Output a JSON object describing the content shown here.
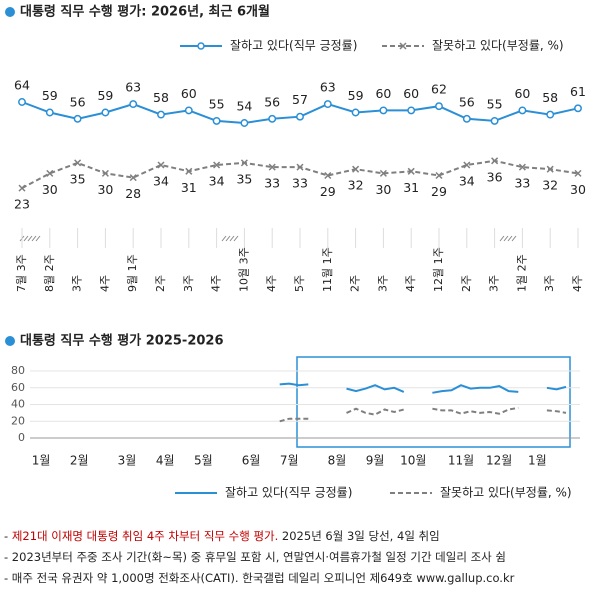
{
  "chart_data": [
    {
      "type": "line",
      "title": "대통령 직무 수행 평가: 2026년, 최근 6개월",
      "categories": [
        "7월 3주",
        "8월 2주",
        "3주",
        "4주",
        "9월 1주",
        "2주",
        "3주",
        "4주",
        "10월 3주",
        "4주",
        "5주",
        "11월 1주",
        "2주",
        "3주",
        "4주",
        "12월 1주",
        "2주",
        "3주",
        "1월 2주",
        "3주",
        "4주"
      ],
      "series": [
        {
          "name": "잘하고 있다(직무 긍정률)",
          "color": "#2b8fd6",
          "style": "solid",
          "marker": "circle",
          "label_position": "above",
          "values": [
            64,
            59,
            56,
            59,
            63,
            58,
            60,
            55,
            54,
            56,
            57,
            63,
            59,
            60,
            60,
            62,
            56,
            55,
            60,
            58,
            61
          ]
        },
        {
          "name": "잘못하고 있다(부정률, %)",
          "color": "#7f7f7f",
          "style": "dashed",
          "marker": "x",
          "label_position": "below",
          "values": [
            23,
            30,
            35,
            30,
            28,
            34,
            31,
            34,
            35,
            33,
            33,
            29,
            32,
            30,
            31,
            29,
            34,
            36,
            33,
            32,
            30
          ]
        }
      ],
      "ylim": [
        15,
        70
      ]
    },
    {
      "type": "line",
      "title": "대통령 직무 수행 평가 2025-2026",
      "categories": [
        null,
        null,
        "1월",
        null,
        null,
        null,
        "2월",
        null,
        null,
        null,
        null,
        "3월",
        null,
        null,
        null,
        "4월",
        null,
        null,
        null,
        "5월",
        null,
        null,
        null,
        null,
        "6월",
        null,
        null,
        null,
        "7월",
        null,
        null,
        null,
        null,
        "8월",
        null,
        null,
        null,
        "9월",
        null,
        null,
        null,
        "10월",
        null,
        null,
        null,
        null,
        "11월",
        null,
        null,
        null,
        "12월",
        null,
        null,
        null,
        "1월",
        null,
        null,
        null
      ],
      "series": [
        {
          "name": "잘하고 있다(직무 긍정률)",
          "color": "#2b8fd6",
          "style": "solid",
          "values": [
            null,
            null,
            null,
            null,
            null,
            null,
            null,
            null,
            null,
            null,
            null,
            null,
            null,
            null,
            null,
            null,
            null,
            null,
            null,
            null,
            null,
            null,
            null,
            null,
            null,
            null,
            null,
            64,
            65,
            63,
            64,
            null,
            null,
            null,
            59,
            56,
            59,
            63,
            58,
            60,
            55,
            null,
            null,
            54,
            56,
            57,
            63,
            59,
            60,
            60,
            62,
            56,
            55,
            null,
            null,
            60,
            58,
            61
          ]
        },
        {
          "name": "잘못하고 있다(부정률, %)",
          "color": "#7f7f7f",
          "style": "dashed",
          "values": [
            null,
            null,
            null,
            null,
            null,
            null,
            null,
            null,
            null,
            null,
            null,
            null,
            null,
            null,
            null,
            null,
            null,
            null,
            null,
            null,
            null,
            null,
            null,
            null,
            null,
            null,
            null,
            20,
            23,
            23,
            23,
            null,
            null,
            null,
            30,
            35,
            30,
            28,
            34,
            31,
            34,
            null,
            null,
            35,
            33,
            33,
            29,
            32,
            30,
            31,
            29,
            34,
            36,
            null,
            null,
            33,
            32,
            30
          ]
        }
      ],
      "ylim": [
        0,
        80
      ],
      "yticks": [
        0,
        20,
        40,
        60,
        80
      ],
      "grid": true
    }
  ],
  "footnotes": [
    [
      "- ",
      "제21대 이재명 대통령 취임 4주 차부터 직무 수행 평가.",
      " 2025년 6월 3일 당선, 4일 취임"
    ],
    [
      "- 2023년부터 주중 조사 기간(화~목) 중 휴무일 포함 시, 연말연시·여름휴가철 일정 기간 데일리 조사 쉼"
    ],
    [
      "- 매주 전국 유권자 약 1,000명 전화조사(CATI). 한국갤럽 데일리 오피니언 제649호 www.gallup.co.kr"
    ]
  ]
}
